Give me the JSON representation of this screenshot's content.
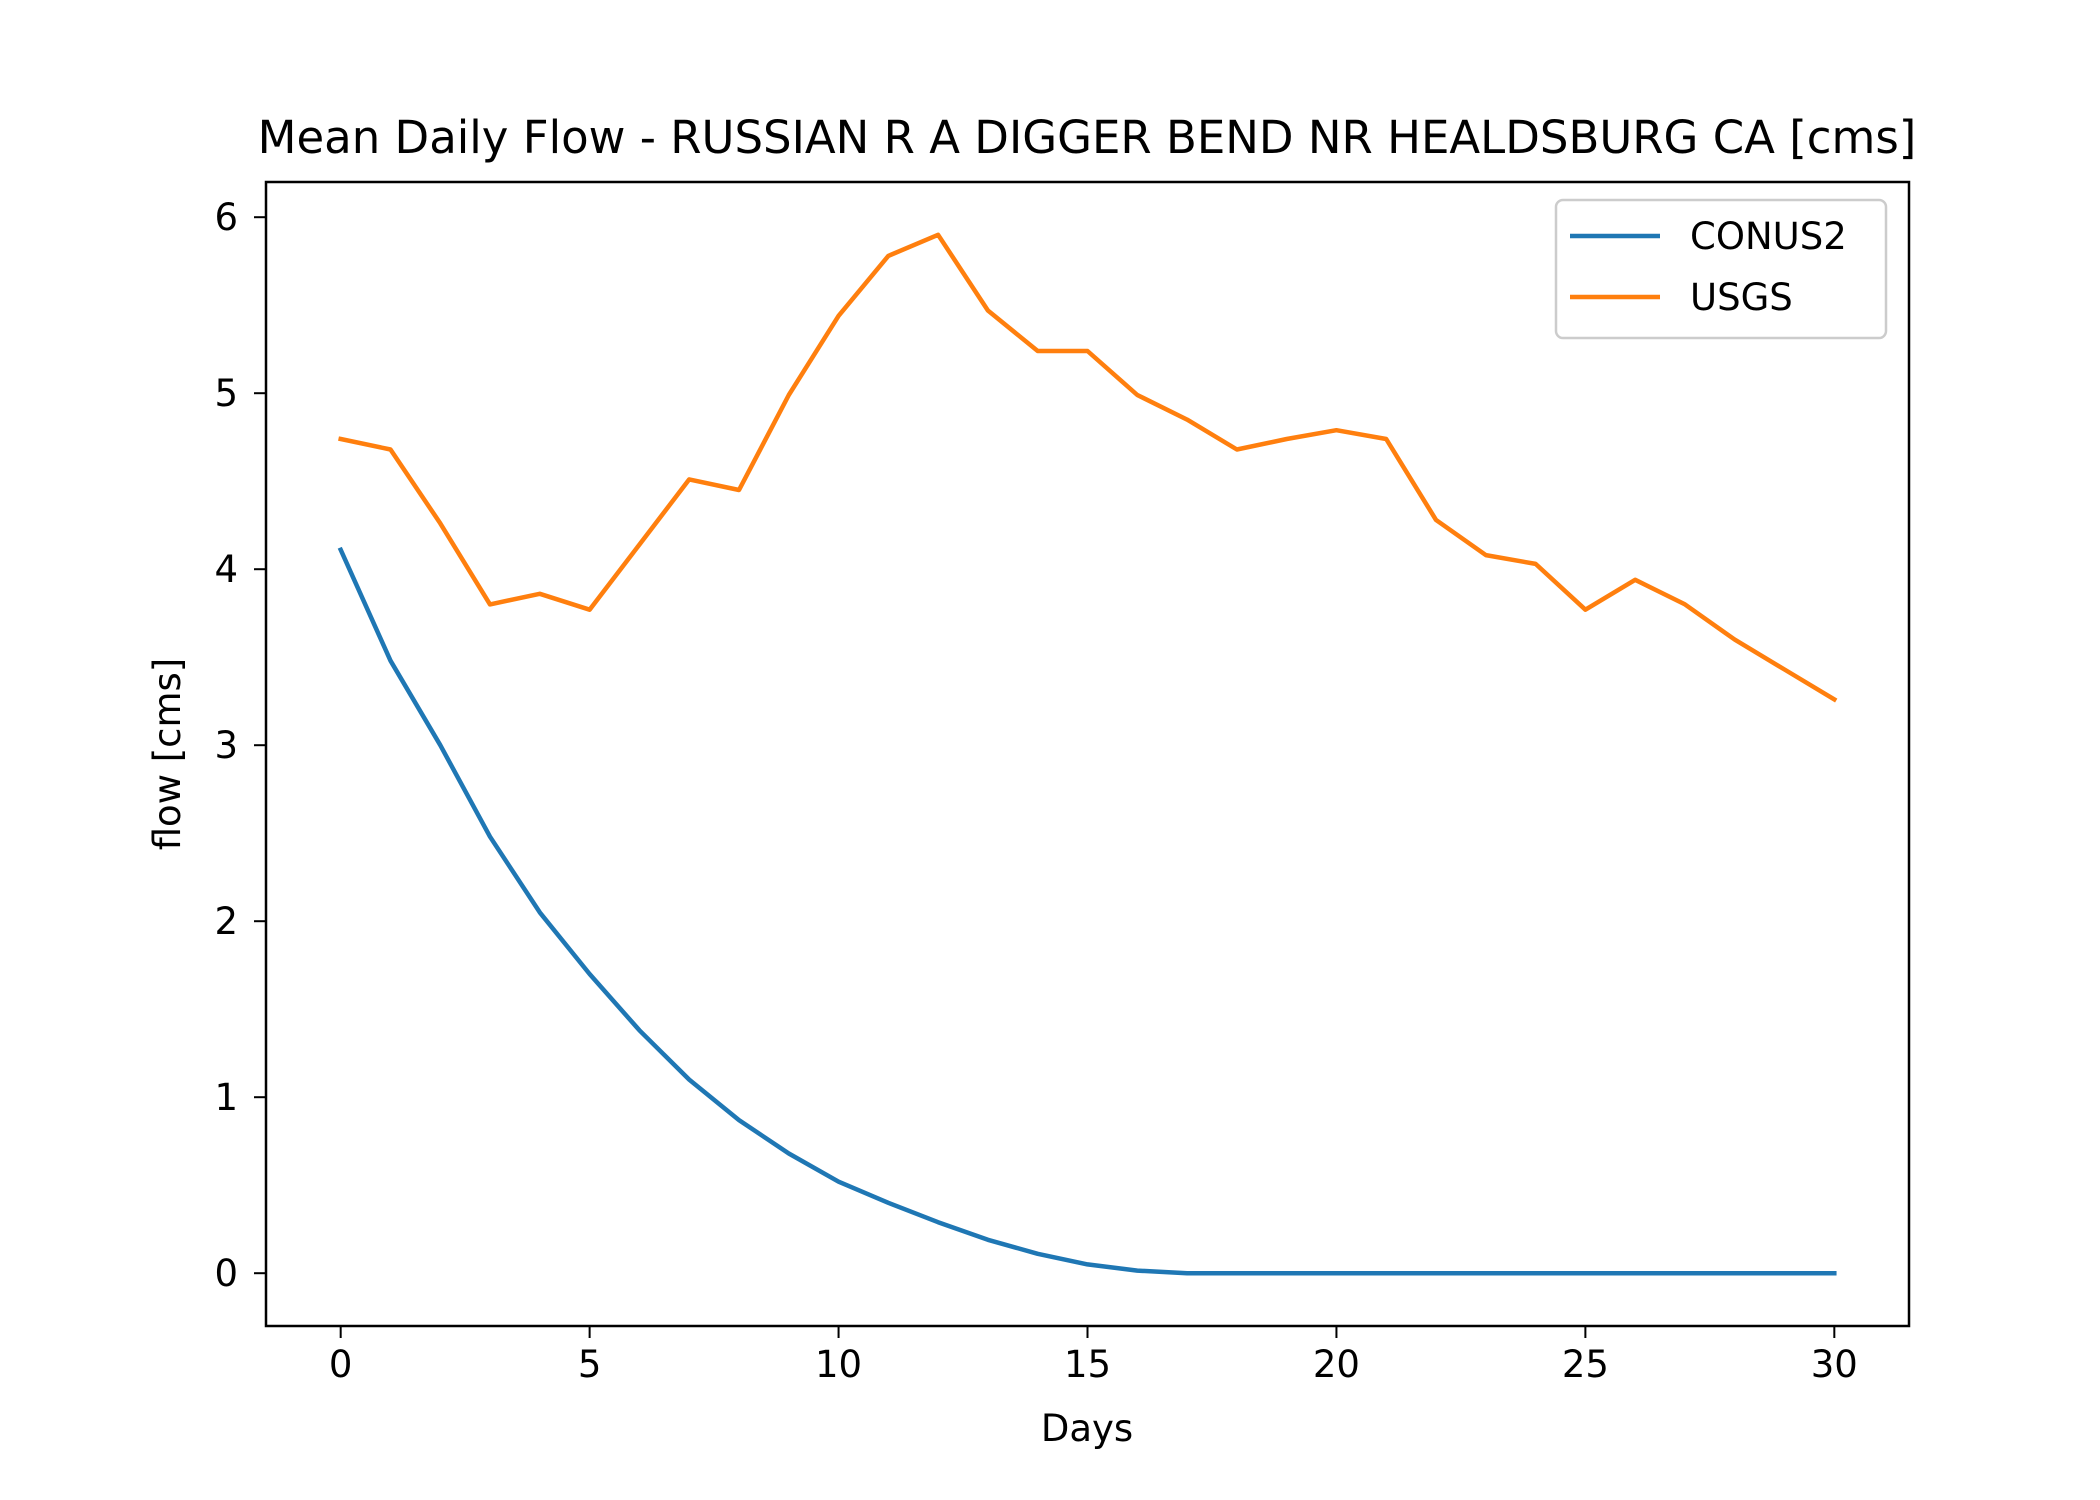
{
  "chart_data": {
    "type": "line",
    "title": "Mean Daily Flow - RUSSIAN R A DIGGER BEND NR HEALDSBURG CA [cms]",
    "xlabel": "Days",
    "ylabel": "flow [cms]",
    "xlim": [
      -1.5,
      31.5
    ],
    "ylim": [
      -0.3,
      6.2
    ],
    "xticks": [
      0,
      5,
      10,
      15,
      20,
      25,
      30
    ],
    "yticks": [
      0,
      1,
      2,
      3,
      4,
      5,
      6
    ],
    "grid": false,
    "legend_position": "upper right",
    "x": [
      0,
      1,
      2,
      3,
      4,
      5,
      6,
      7,
      8,
      9,
      10,
      11,
      12,
      13,
      14,
      15,
      16,
      17,
      18,
      19,
      20,
      21,
      22,
      23,
      24,
      25,
      26,
      27,
      28,
      29,
      30
    ],
    "series": [
      {
        "name": "CONUS2",
        "color": "#1f77b4",
        "values": [
          4.11,
          3.48,
          3.0,
          2.48,
          2.05,
          1.7,
          1.38,
          1.1,
          0.87,
          0.68,
          0.52,
          0.4,
          0.29,
          0.19,
          0.11,
          0.05,
          0.015,
          0.0,
          0.0,
          0.0,
          0.0,
          0.0,
          0.0,
          0.0,
          0.0,
          0.0,
          0.0,
          0.0,
          0.0,
          0.0,
          0.0
        ]
      },
      {
        "name": "USGS",
        "color": "#ff7f0e",
        "values": [
          4.74,
          4.68,
          4.26,
          3.8,
          3.86,
          3.77,
          4.14,
          4.51,
          4.45,
          4.99,
          5.44,
          5.78,
          5.9,
          5.47,
          5.24,
          5.24,
          4.99,
          4.85,
          4.68,
          4.74,
          4.79,
          4.74,
          4.28,
          4.08,
          4.03,
          3.77,
          3.94,
          3.8,
          3.6,
          3.43,
          3.26
        ]
      }
    ]
  }
}
